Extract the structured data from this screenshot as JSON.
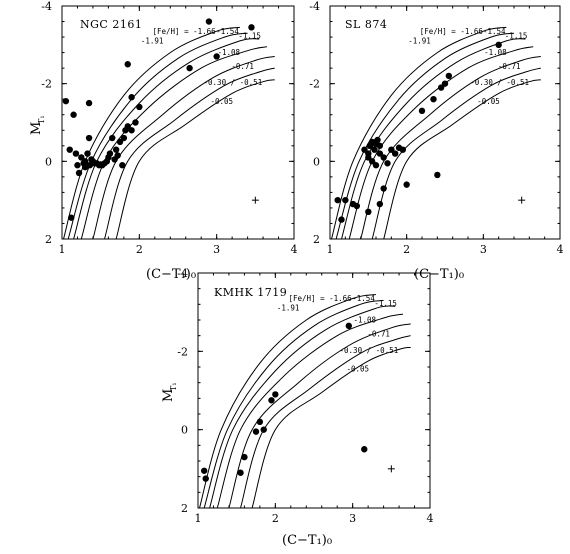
{
  "figure": {
    "chart_data": [
      {
        "type": "scatter",
        "title": "NGC 2161",
        "xlabel": "(C−T₁)₀",
        "ylabel": "M_T1",
        "xlim": [
          1,
          4
        ],
        "ylim": [
          2,
          -4
        ],
        "xticks": [
          1,
          2,
          3,
          4
        ],
        "yticks": [
          -4,
          -2,
          0,
          2
        ],
        "error_cross": {
          "x": 3.5,
          "y": 1.0
        },
        "points": [
          [
            1.05,
            -1.55
          ],
          [
            1.1,
            -0.3
          ],
          [
            1.15,
            -1.2
          ],
          [
            1.18,
            -0.2
          ],
          [
            1.2,
            0.1
          ],
          [
            1.22,
            0.3
          ],
          [
            1.25,
            -0.1
          ],
          [
            1.28,
            0.05
          ],
          [
            1.3,
            0.15
          ],
          [
            1.33,
            -0.2
          ],
          [
            1.35,
            -1.5
          ],
          [
            1.36,
            0.1
          ],
          [
            1.38,
            -0.05
          ],
          [
            1.4,
            0.0
          ],
          [
            1.42,
            0.05
          ],
          [
            1.45,
            0.05
          ],
          [
            1.48,
            0.1
          ],
          [
            1.5,
            0.08
          ],
          [
            1.52,
            0.1
          ],
          [
            1.55,
            0.05
          ],
          [
            1.6,
            -0.1
          ],
          [
            1.62,
            -0.2
          ],
          [
            1.7,
            -0.3
          ],
          [
            1.72,
            -0.15
          ],
          [
            1.75,
            -0.5
          ],
          [
            1.8,
            -0.6
          ],
          [
            1.82,
            -0.8
          ],
          [
            1.85,
            -0.9
          ],
          [
            1.78,
            0.1
          ],
          [
            1.9,
            -1.65
          ],
          [
            1.9,
            -0.8
          ],
          [
            1.95,
            -1.0
          ],
          [
            2.0,
            -1.4
          ],
          [
            1.85,
            -2.5
          ],
          [
            2.65,
            -2.4
          ],
          [
            2.9,
            -3.6
          ],
          [
            3.45,
            -3.45
          ],
          [
            3.0,
            -2.7
          ],
          [
            1.12,
            1.45
          ],
          [
            1.3,
            0.0
          ],
          [
            1.35,
            -0.6
          ],
          [
            1.65,
            -0.6
          ],
          [
            1.58,
            0.0
          ],
          [
            1.68,
            -0.05
          ]
        ]
      },
      {
        "type": "scatter",
        "title": "SL 874",
        "xlabel": "(C−T₁)₀",
        "ylabel": "",
        "xlim": [
          1,
          4
        ],
        "ylim": [
          2,
          -4
        ],
        "xticks": [
          1,
          2,
          3,
          4
        ],
        "yticks": [
          -4,
          -2,
          0,
          2
        ],
        "error_cross": {
          "x": 3.5,
          "y": 1.0
        },
        "points": [
          [
            1.1,
            1.0
          ],
          [
            1.2,
            1.0
          ],
          [
            1.15,
            1.5
          ],
          [
            1.3,
            1.1
          ],
          [
            1.35,
            1.15
          ],
          [
            1.5,
            1.3
          ],
          [
            1.45,
            -0.3
          ],
          [
            1.5,
            -0.2
          ],
          [
            1.52,
            -0.4
          ],
          [
            1.55,
            -0.5
          ],
          [
            1.58,
            -0.3
          ],
          [
            1.6,
            -0.45
          ],
          [
            1.62,
            -0.55
          ],
          [
            1.65,
            -0.2
          ],
          [
            1.65,
            -0.4
          ],
          [
            1.5,
            -0.1
          ],
          [
            1.55,
            0.0
          ],
          [
            1.6,
            0.1
          ],
          [
            1.7,
            -0.1
          ],
          [
            1.75,
            0.05
          ],
          [
            1.8,
            -0.3
          ],
          [
            1.85,
            -0.2
          ],
          [
            1.9,
            -0.35
          ],
          [
            1.95,
            -0.3
          ],
          [
            1.65,
            1.1
          ],
          [
            1.7,
            0.7
          ],
          [
            2.0,
            0.6
          ],
          [
            2.2,
            -1.3
          ],
          [
            2.35,
            -1.6
          ],
          [
            2.45,
            -1.9
          ],
          [
            2.5,
            -2.0
          ],
          [
            2.55,
            -2.2
          ],
          [
            2.4,
            0.35
          ],
          [
            3.2,
            -3.0
          ],
          [
            1.6,
            -0.5
          ]
        ]
      },
      {
        "type": "scatter",
        "title": "KMHK 1719",
        "xlabel": "(C−T₁)₀",
        "ylabel": "M_T1",
        "xlim": [
          1,
          4
        ],
        "ylim": [
          2,
          -4
        ],
        "xticks": [
          1,
          2,
          3,
          4
        ],
        "yticks": [
          -4,
          -2,
          0,
          2
        ],
        "error_cross": {
          "x": 3.5,
          "y": 1.0
        },
        "points": [
          [
            1.08,
            1.05
          ],
          [
            1.1,
            1.25
          ],
          [
            1.55,
            1.1
          ],
          [
            1.6,
            0.7
          ],
          [
            1.75,
            0.05
          ],
          [
            1.8,
            -0.2
          ],
          [
            1.85,
            0.0
          ],
          [
            1.95,
            -0.75
          ],
          [
            2.0,
            -0.9
          ],
          [
            2.95,
            -2.65
          ],
          [
            3.15,
            0.5
          ]
        ]
      }
    ],
    "legend": {
      "feh_label": "[Fe/H] =",
      "values": [
        "-1.66",
        "-1.54",
        "-1.15",
        "-1.91",
        "-1.08",
        "-0.71",
        "-0.30",
        "/",
        "-0.51",
        "-0.05"
      ]
    }
  }
}
